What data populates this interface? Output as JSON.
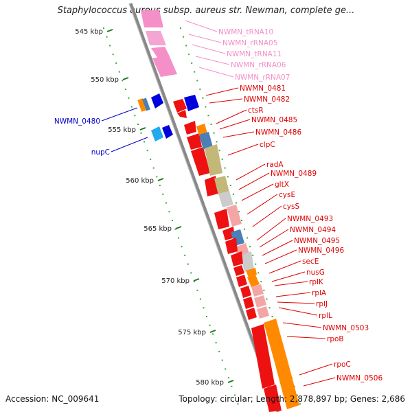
{
  "title": "Staphylococcus aureus subsp. aureus str. Newman, complete ge...",
  "accession": "Accession: NC_009641",
  "topology": "Topology: circular; Length: 2,878,897 bp; Genes: 2,686",
  "colors": {
    "rna": "#f48fc8",
    "gene_plus": "#e00000",
    "gene_minus": "#0000cc",
    "backbone": "#888888",
    "tick_dot": "#33aa33",
    "tick_major": "#1a7a1a"
  },
  "ticks": [
    "545 kbp",
    "550 kbp",
    "555 kbp",
    "560 kbp",
    "565 kbp",
    "570 kbp",
    "575 kbp",
    "580 kbp"
  ],
  "left_labels": [
    "NWMN_0480",
    "nupC"
  ],
  "right_labels": [
    {
      "text": "NWMN_tRNA10",
      "kind": "rna"
    },
    {
      "text": "NWMN_rRNA05",
      "kind": "rna"
    },
    {
      "text": "NWMN_tRNA11",
      "kind": "rna"
    },
    {
      "text": "NWMN_rRNA06",
      "kind": "rna"
    },
    {
      "text": "NWMN_rRNA07",
      "kind": "rna"
    },
    {
      "text": "NWMN_0481",
      "kind": "gene"
    },
    {
      "text": "NWMN_0482",
      "kind": "gene"
    },
    {
      "text": "ctsR",
      "kind": "gene"
    },
    {
      "text": "NWMN_0485",
      "kind": "gene"
    },
    {
      "text": "NWMN_0486",
      "kind": "gene"
    },
    {
      "text": "clpC",
      "kind": "gene"
    },
    {
      "text": "radA",
      "kind": "gene"
    },
    {
      "text": "NWMN_0489",
      "kind": "gene"
    },
    {
      "text": "gltX",
      "kind": "gene"
    },
    {
      "text": "cysE",
      "kind": "gene"
    },
    {
      "text": "cysS",
      "kind": "gene"
    },
    {
      "text": "NWMN_0493",
      "kind": "gene"
    },
    {
      "text": "NWMN_0494",
      "kind": "gene"
    },
    {
      "text": "NWMN_0495",
      "kind": "gene"
    },
    {
      "text": "NWMN_0496",
      "kind": "gene"
    },
    {
      "text": "secE",
      "kind": "gene"
    },
    {
      "text": "nusG",
      "kind": "gene"
    },
    {
      "text": "rplK",
      "kind": "gene"
    },
    {
      "text": "rplA",
      "kind": "gene"
    },
    {
      "text": "rplJ",
      "kind": "gene"
    },
    {
      "text": "rplL",
      "kind": "gene"
    },
    {
      "text": "NWMN_0503",
      "kind": "gene"
    },
    {
      "text": "rpoB",
      "kind": "gene"
    },
    {
      "text": "rpoC",
      "kind": "gene"
    },
    {
      "text": "NWMN_0506",
      "kind": "gene"
    }
  ]
}
